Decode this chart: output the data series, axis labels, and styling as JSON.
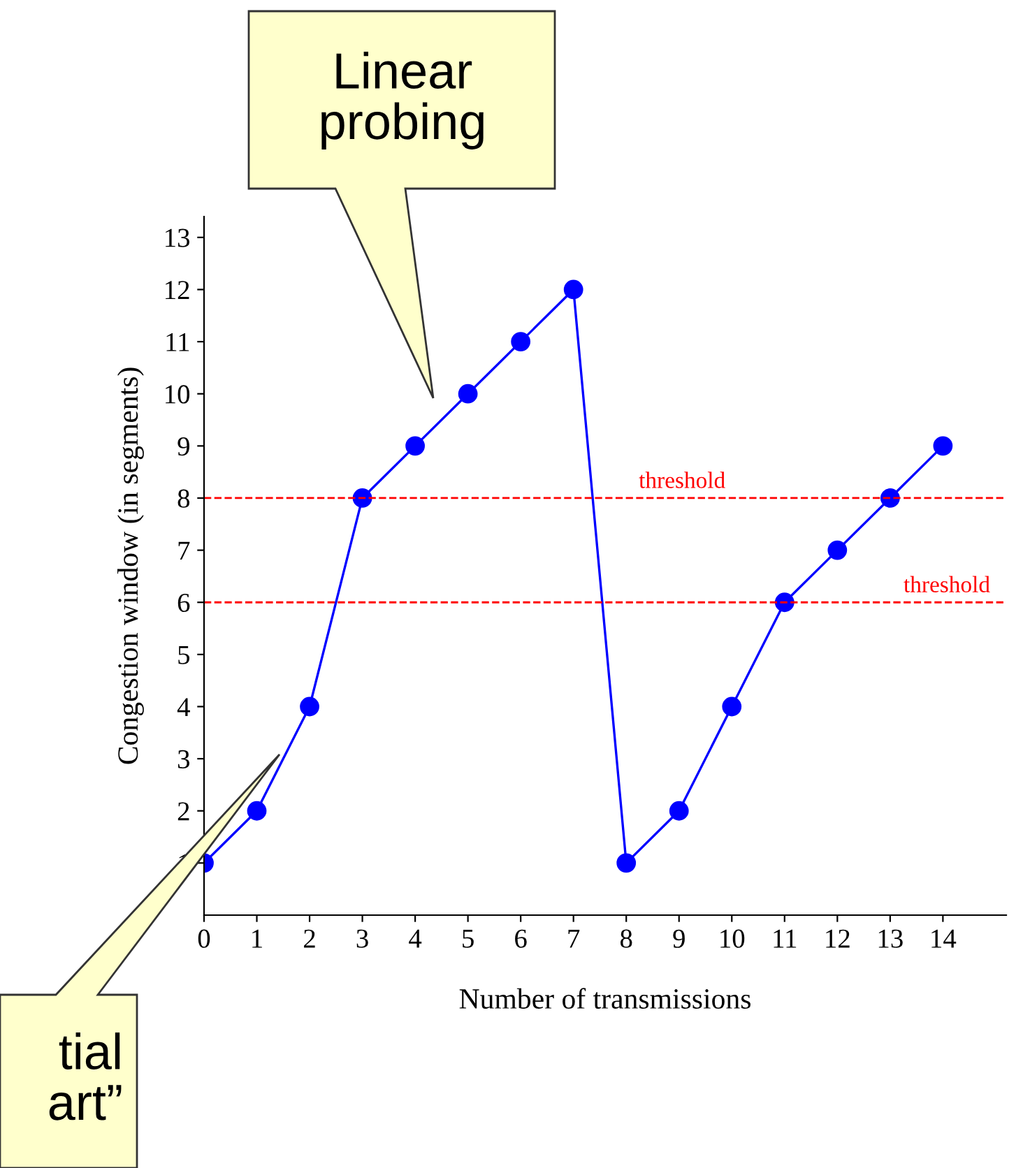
{
  "chart_data": {
    "type": "line",
    "xlabel": "Number of transmissions",
    "ylabel": "Congestion window (in segments)",
    "x": [
      0,
      1,
      2,
      3,
      4,
      5,
      6,
      7,
      8,
      9,
      10,
      11,
      12,
      13,
      14
    ],
    "series": [
      {
        "color": "#0000ff",
        "values": [
          1,
          2,
          4,
          8,
          9,
          10,
          11,
          12,
          1,
          2,
          4,
          6,
          7,
          8,
          9
        ]
      }
    ],
    "marker": "circle",
    "line_style": "solid",
    "xlim": [
      0,
      15.2
    ],
    "ylim": [
      0,
      13.4
    ],
    "xticks": [
      0,
      1,
      2,
      3,
      4,
      5,
      6,
      7,
      8,
      9,
      10,
      11,
      12,
      13,
      14
    ],
    "yticks": [
      1,
      2,
      3,
      4,
      5,
      6,
      7,
      8,
      9,
      10,
      11,
      12,
      13
    ],
    "ref_lines": [
      {
        "axis": "y",
        "value": 8,
        "label": "threshold",
        "color": "#ff0000",
        "line_style": "dashed"
      },
      {
        "axis": "y",
        "value": 6,
        "label": "threshold",
        "color": "#ff0000",
        "line_style": "dashed"
      }
    ],
    "annotations": [
      "Linear\nprobing",
      "tial\nart”"
    ],
    "grid": false,
    "legend": false
  }
}
